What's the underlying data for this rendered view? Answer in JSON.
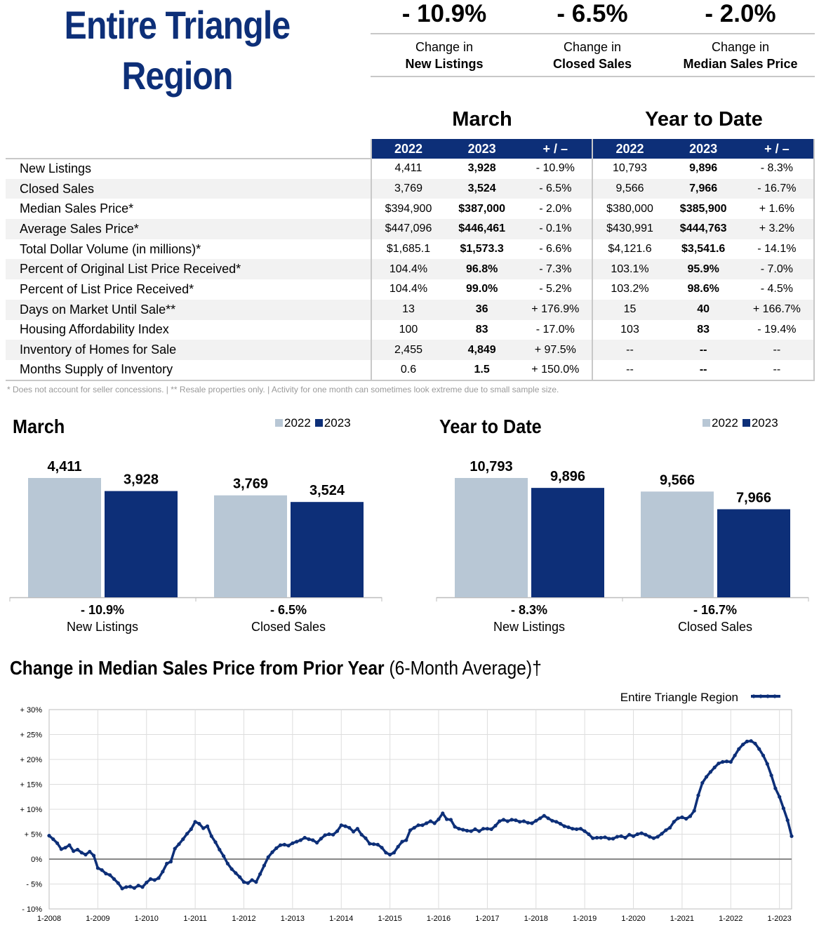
{
  "header": {
    "title_line1": "Entire Triangle",
    "title_line2": "Region",
    "kpis": [
      {
        "value": "- 10.9%",
        "label_top": "Change in",
        "label_bottom": "New Listings"
      },
      {
        "value": "- 6.5%",
        "label_top": "Change in",
        "label_bottom": "Closed Sales"
      },
      {
        "value": "- 2.0%",
        "label_top": "Change in",
        "label_bottom": "Median Sales Price"
      }
    ]
  },
  "table": {
    "period_month": "March",
    "period_ytd": "Year to Date",
    "columns": [
      "2022",
      "2023",
      "+ / –",
      "2022",
      "2023",
      "+ / –"
    ],
    "rows": [
      {
        "label": "New Listings",
        "m22": "4,411",
        "m23": "3,928",
        "mchg": "- 10.9%",
        "y22": "10,793",
        "y23": "9,896",
        "ychg": "- 8.3%"
      },
      {
        "label": "Closed Sales",
        "m22": "3,769",
        "m23": "3,524",
        "mchg": "- 6.5%",
        "y22": "9,566",
        "y23": "7,966",
        "ychg": "- 16.7%"
      },
      {
        "label": "Median Sales Price*",
        "m22": "$394,900",
        "m23": "$387,000",
        "mchg": "- 2.0%",
        "y22": "$380,000",
        "y23": "$385,900",
        "ychg": "+ 1.6%"
      },
      {
        "label": "Average Sales Price*",
        "m22": "$447,096",
        "m23": "$446,461",
        "mchg": "- 0.1%",
        "y22": "$430,991",
        "y23": "$444,763",
        "ychg": "+ 3.2%"
      },
      {
        "label": "Total Dollar Volume (in millions)*",
        "m22": "$1,685.1",
        "m23": "$1,573.3",
        "mchg": "- 6.6%",
        "y22": "$4,121.6",
        "y23": "$3,541.6",
        "ychg": "- 14.1%"
      },
      {
        "label": "Percent of Original List Price Received*",
        "m22": "104.4%",
        "m23": "96.8%",
        "mchg": "- 7.3%",
        "y22": "103.1%",
        "y23": "95.9%",
        "ychg": "- 7.0%"
      },
      {
        "label": "Percent of List Price Received*",
        "m22": "104.4%",
        "m23": "99.0%",
        "mchg": "- 5.2%",
        "y22": "103.2%",
        "y23": "98.6%",
        "ychg": "- 4.5%"
      },
      {
        "label": "Days on Market Until Sale**",
        "m22": "13",
        "m23": "36",
        "mchg": "+ 176.9%",
        "y22": "15",
        "y23": "40",
        "ychg": "+ 166.7%"
      },
      {
        "label": "Housing Affordability Index",
        "m22": "100",
        "m23": "83",
        "mchg": "- 17.0%",
        "y22": "103",
        "y23": "83",
        "ychg": "- 19.4%"
      },
      {
        "label": "Inventory of Homes for Sale",
        "m22": "2,455",
        "m23": "4,849",
        "mchg": "+ 97.5%",
        "y22": "--",
        "y23": "--",
        "ychg": "--"
      },
      {
        "label": "Months Supply of Inventory",
        "m22": "0.6",
        "m23": "1.5",
        "mchg": "+ 150.0%",
        "y22": "--",
        "y23": "--",
        "ychg": "--"
      }
    ],
    "footnote": "* Does not account for seller concessions.  |  ** Resale properties only.  |  Activity for one month can sometimes look extreme due to small sample size."
  },
  "colors": {
    "navy": "#0d2f78",
    "light": "#b8c7d5",
    "line": "#0d2f78"
  },
  "chart_data": [
    {
      "type": "bar",
      "title": "March",
      "legend": [
        "2022",
        "2023"
      ],
      "legend_position": "top-right",
      "categories": [
        "New Listings",
        "Closed Sales"
      ],
      "changes": [
        "- 10.9%",
        "- 6.5%"
      ],
      "series": [
        {
          "name": "2022",
          "values": [
            4411,
            3769
          ],
          "labels": [
            "4,411",
            "3,769"
          ]
        },
        {
          "name": "2023",
          "values": [
            3928,
            3524
          ],
          "labels": [
            "3,928",
            "3,524"
          ]
        }
      ]
    },
    {
      "type": "bar",
      "title": "Year to Date",
      "legend": [
        "2022",
        "2023"
      ],
      "legend_position": "top-right",
      "categories": [
        "New Listings",
        "Closed Sales"
      ],
      "changes": [
        "- 8.3%",
        "- 16.7%"
      ],
      "series": [
        {
          "name": "2022",
          "values": [
            10793,
            9566
          ],
          "labels": [
            "10,793",
            "9,566"
          ]
        },
        {
          "name": "2023",
          "values": [
            9896,
            7966
          ],
          "labels": [
            "9,896",
            "7,966"
          ]
        }
      ]
    },
    {
      "type": "line",
      "title": "Change in Median Sales Price from Prior Year",
      "subtitle": "(6-Month Average)†",
      "legend_position": "top-right",
      "ylim": [
        -10,
        30
      ],
      "yticks": [
        "+ 30%",
        "+ 25%",
        "+ 20%",
        "+ 15%",
        "+ 10%",
        "+ 5%",
        "0%",
        "- 5%",
        "- 10%"
      ],
      "xticks": [
        "1-2008",
        "1-2009",
        "1-2010",
        "1-2011",
        "1-2012",
        "1-2013",
        "1-2014",
        "1-2015",
        "1-2016",
        "1-2017",
        "1-2018",
        "1-2019",
        "1-2020",
        "1-2021",
        "1-2022",
        "1-2023"
      ],
      "x_start": "1-2008",
      "x_end": "3-2023",
      "series": [
        {
          "name": "Entire Triangle Region",
          "values": [
            4.7,
            4.0,
            3.2,
            2.0,
            2.3,
            2.8,
            1.6,
            1.9,
            1.3,
            0.9,
            1.5,
            0.7,
            -1.8,
            -2.2,
            -2.9,
            -3.2,
            -4.0,
            -4.8,
            -5.9,
            -5.6,
            -5.5,
            -5.8,
            -5.3,
            -5.6,
            -4.7,
            -4.0,
            -4.2,
            -3.8,
            -2.5,
            -0.9,
            -0.5,
            2.1,
            3.0,
            4.0,
            5.1,
            6.0,
            7.5,
            7.1,
            6.2,
            6.6,
            4.6,
            3.4,
            1.9,
            0.6,
            -0.9,
            -2.0,
            -2.8,
            -3.6,
            -4.6,
            -4.8,
            -4.2,
            -4.6,
            -3.0,
            -1.3,
            0.4,
            1.4,
            2.2,
            2.8,
            2.9,
            2.7,
            3.2,
            3.5,
            3.8,
            4.3,
            4.0,
            3.8,
            3.3,
            4.1,
            4.8,
            5.0,
            4.9,
            5.6,
            6.8,
            6.6,
            6.3,
            5.5,
            6.1,
            4.9,
            4.2,
            3.1,
            3.0,
            2.9,
            2.3,
            1.3,
            0.9,
            1.3,
            2.5,
            3.5,
            3.8,
            5.8,
            6.3,
            6.8,
            6.8,
            7.2,
            7.6,
            7.2,
            8.0,
            9.2,
            8.0,
            7.9,
            6.5,
            6.1,
            5.9,
            5.7,
            5.6,
            6.0,
            5.6,
            6.1,
            6.1,
            6.0,
            6.7,
            7.6,
            7.9,
            7.6,
            7.9,
            7.8,
            7.5,
            7.6,
            7.3,
            7.2,
            7.7,
            8.2,
            8.7,
            8.2,
            7.7,
            7.5,
            7.1,
            6.6,
            6.4,
            6.1,
            6.0,
            6.1,
            5.6,
            5.0,
            4.2,
            4.3,
            4.3,
            4.4,
            4.1,
            4.1,
            4.5,
            4.6,
            4.3,
            4.9,
            4.6,
            5.0,
            5.2,
            4.9,
            4.5,
            4.2,
            4.5,
            5.1,
            5.8,
            6.3,
            7.5,
            8.2,
            8.4,
            8.1,
            8.6,
            9.7,
            12.8,
            15.3,
            16.5,
            17.5,
            18.4,
            19.2,
            19.5,
            19.6,
            19.5,
            20.8,
            22.1,
            23.0,
            23.6,
            23.7,
            23.2,
            22.1,
            20.8,
            19.1,
            16.8,
            14.2,
            12.5,
            10.2,
            7.8,
            4.6
          ]
        }
      ]
    }
  ]
}
